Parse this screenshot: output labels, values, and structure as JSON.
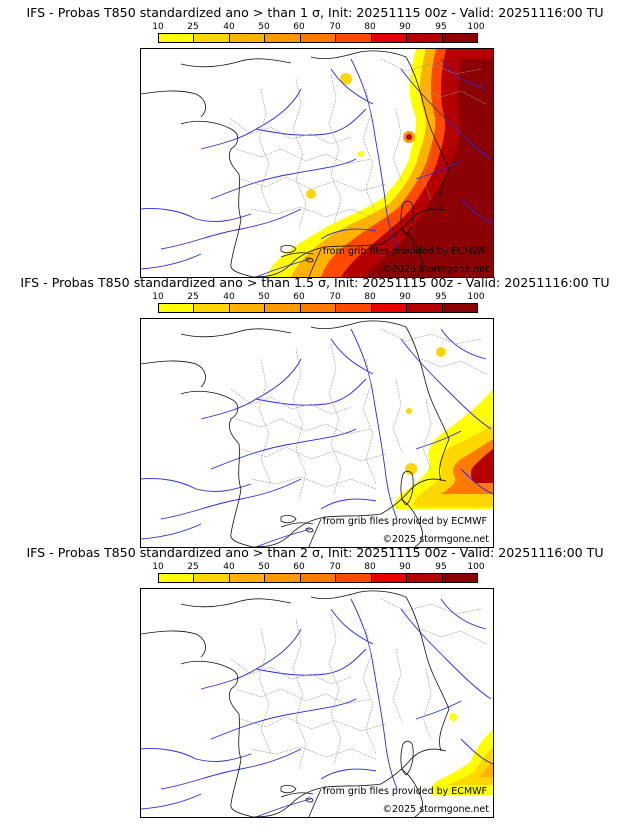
{
  "legend": {
    "labels": [
      "10",
      "25",
      "40",
      "50",
      "60",
      "70",
      "80",
      "90",
      "95",
      "100"
    ],
    "colors": [
      "#ffff00",
      "#ffd700",
      "#ffb300",
      "#ff9900",
      "#ff7a00",
      "#ff4a00",
      "#e60000",
      "#b40000",
      "#8b0000"
    ]
  },
  "credits": {
    "source": "from grib files provided by ECMWF",
    "copyright": "©2025 stormgone.net"
  },
  "panels": [
    {
      "title": "IFS - Probas T850  standardized ano > than 1 σ, Init: 20251115 00z - Valid: 20251116:00 TU",
      "level": "high"
    },
    {
      "title": "IFS - Probas T850  standardized ano > than 1.5 σ, Init: 20251115 00z - Valid: 20251116:00 TU",
      "level": "mid"
    },
    {
      "title": "IFS - Probas T850  standardized ano > than 2 σ, Init: 20251115 00z - Valid: 20251116:00 TU",
      "level": "low"
    }
  ]
}
